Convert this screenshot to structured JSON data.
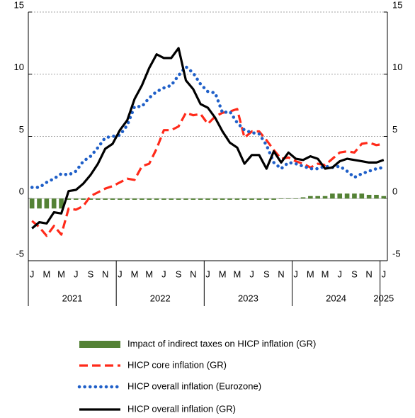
{
  "chart_data": {
    "type": "combo",
    "categories": [
      "J",
      null,
      "M",
      null,
      "M",
      null,
      "J",
      null,
      "S",
      null,
      "N",
      null,
      "J",
      null,
      "M",
      null,
      "M",
      null,
      "J",
      null,
      "S",
      null,
      "N",
      null,
      "J",
      null,
      "M",
      null,
      "M",
      null,
      "J",
      null,
      "S",
      null,
      "N",
      null,
      "J",
      null,
      "M",
      null,
      "M",
      null,
      "J",
      null,
      "S",
      null,
      "N",
      null,
      "J"
    ],
    "year_groups": [
      "2021",
      "2022",
      "2023",
      "2024",
      "2025"
    ],
    "ylim": [
      -5,
      15
    ],
    "yticks": [
      -5,
      0,
      5,
      10,
      15
    ],
    "y2lim": [
      -5,
      15
    ],
    "y2ticks": [
      -5,
      0,
      5,
      10,
      15
    ],
    "grid": true,
    "series": [
      {
        "name": "Impact of indirect taxes on HICP inflation (GR)",
        "style": "bar",
        "color": "#548235",
        "values": [
          -0.8,
          -0.8,
          -0.8,
          -0.8,
          -0.8,
          -0.1,
          -0.1,
          -0.1,
          -0.1,
          -0.1,
          -0.1,
          -0.1,
          -0.1,
          -0.1,
          -0.1,
          -0.1,
          -0.1,
          -0.1,
          -0.1,
          -0.1,
          -0.1,
          -0.1,
          -0.1,
          -0.1,
          -0.1,
          -0.1,
          -0.1,
          -0.1,
          -0.1,
          -0.1,
          -0.1,
          -0.1,
          -0.1,
          -0.1,
          0,
          0,
          0,
          0.1,
          0.2,
          0.2,
          0.2,
          0.4,
          0.4,
          0.4,
          0.4,
          0.4,
          0.3,
          0.3,
          0.2
        ]
      },
      {
        "name": "HICP core inflation (GR)",
        "style": "dashed",
        "color": "#ff2a1a",
        "values": [
          -1.8,
          -2.3,
          -3.0,
          -2.2,
          -2.9,
          -0.8,
          -0.9,
          -0.6,
          0.2,
          0.5,
          0.8,
          1.0,
          1.3,
          1.6,
          1.5,
          2.6,
          2.8,
          4.0,
          5.5,
          5.5,
          5.8,
          6.9,
          6.7,
          6.8,
          6.0,
          6.6,
          6.9,
          7.0,
          7.2,
          4.9,
          5.4,
          5.4,
          4.7,
          3.9,
          3.2,
          3.3,
          3.0,
          2.8,
          2.5,
          2.8,
          2.7,
          3.2,
          3.7,
          3.8,
          3.7,
          4.4,
          4.5,
          4.3,
          4.4
        ]
      },
      {
        "name": "HICP overall inflation (Eurozone)",
        "style": "dotted",
        "color": "#1f5fc8",
        "values": [
          0.9,
          0.9,
          1.3,
          1.6,
          2.0,
          1.9,
          2.2,
          3.0,
          3.4,
          4.1,
          4.9,
          5.0,
          5.1,
          5.9,
          7.4,
          7.4,
          8.1,
          8.6,
          8.9,
          9.1,
          9.9,
          10.6,
          10.1,
          9.2,
          8.6,
          8.5,
          6.9,
          7.0,
          6.1,
          5.5,
          5.3,
          5.2,
          4.3,
          2.9,
          2.4,
          2.9,
          2.8,
          2.6,
          2.4,
          2.4,
          2.6,
          2.5,
          2.6,
          2.2,
          1.7,
          2.0,
          2.2,
          2.4,
          2.5
        ]
      },
      {
        "name": "HICP overall inflation (GR)",
        "style": "solid",
        "color": "#000000",
        "values": [
          -2.4,
          -1.9,
          -2.0,
          -1.1,
          -1.2,
          0.6,
          0.7,
          1.2,
          1.9,
          2.8,
          4.0,
          4.4,
          5.5,
          6.3,
          8.0,
          9.1,
          10.5,
          11.6,
          11.3,
          11.3,
          12.1,
          9.5,
          8.8,
          7.6,
          7.3,
          6.5,
          5.4,
          4.5,
          4.1,
          2.8,
          3.5,
          3.5,
          2.4,
          3.8,
          2.9,
          3.7,
          3.2,
          3.1,
          3.4,
          3.2,
          2.4,
          2.5,
          3.0,
          3.2,
          3.1,
          3.0,
          2.9,
          2.9,
          3.1
        ]
      }
    ]
  }
}
